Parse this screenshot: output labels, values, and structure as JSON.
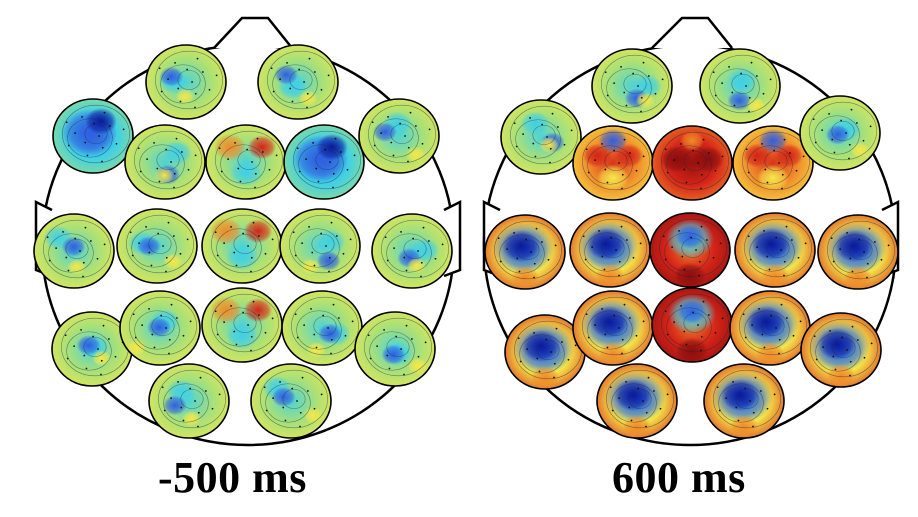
{
  "panels": [
    {
      "id": "left",
      "label": "-500 ms",
      "maps": [
        {
          "name": "r1-1",
          "pattern": "mixed"
        },
        {
          "name": "r1-2",
          "pattern": "mixed"
        },
        {
          "name": "r2-1",
          "pattern": "blue"
        },
        {
          "name": "r2-2",
          "pattern": "mixed"
        },
        {
          "name": "r2-3",
          "pattern": "mixed-warm"
        },
        {
          "name": "r2-4",
          "pattern": "blue"
        },
        {
          "name": "r2-5",
          "pattern": "mixed"
        },
        {
          "name": "r3-1",
          "pattern": "mixed"
        },
        {
          "name": "r3-2",
          "pattern": "mixed"
        },
        {
          "name": "r3-3",
          "pattern": "mixed-warm"
        },
        {
          "name": "r3-4",
          "pattern": "mixed"
        },
        {
          "name": "r3-5",
          "pattern": "mixed"
        },
        {
          "name": "r4-1",
          "pattern": "mixed"
        },
        {
          "name": "r4-2",
          "pattern": "mixed"
        },
        {
          "name": "r4-3",
          "pattern": "mixed-warm"
        },
        {
          "name": "r4-4",
          "pattern": "mixed"
        },
        {
          "name": "r4-5",
          "pattern": "mixed"
        },
        {
          "name": "r5-1",
          "pattern": "mixed"
        },
        {
          "name": "r5-2",
          "pattern": "mixed"
        }
      ]
    },
    {
      "id": "right",
      "label": "600 ms",
      "maps": [
        {
          "name": "r1-1",
          "pattern": "mixed"
        },
        {
          "name": "r1-2",
          "pattern": "mixed"
        },
        {
          "name": "r2-1",
          "pattern": "mixed"
        },
        {
          "name": "r2-2",
          "pattern": "warm"
        },
        {
          "name": "r2-3",
          "pattern": "hot"
        },
        {
          "name": "r2-4",
          "pattern": "warm"
        },
        {
          "name": "r2-5",
          "pattern": "mixed"
        },
        {
          "name": "r3-1",
          "pattern": "blue-center"
        },
        {
          "name": "r3-2",
          "pattern": "blue-center"
        },
        {
          "name": "r3-3",
          "pattern": "blue-top-warm"
        },
        {
          "name": "r3-4",
          "pattern": "blue-center"
        },
        {
          "name": "r3-5",
          "pattern": "blue-center"
        },
        {
          "name": "r4-1",
          "pattern": "blue-center"
        },
        {
          "name": "r4-2",
          "pattern": "blue-center"
        },
        {
          "name": "r4-3",
          "pattern": "blue-top-warm"
        },
        {
          "name": "r4-4",
          "pattern": "blue-center"
        },
        {
          "name": "r4-5",
          "pattern": "blue-center"
        },
        {
          "name": "r5-1",
          "pattern": "blue-center"
        },
        {
          "name": "r5-2",
          "pattern": "blue-center"
        }
      ]
    }
  ],
  "colormap": {
    "deep_blue": "#0a1a9c",
    "blue": "#2f5fe0",
    "cyan": "#3fd0e6",
    "green": "#a6e07a",
    "yellow": "#f5e84a",
    "orange": "#f08a2a",
    "red": "#d42418",
    "dark_red": "#8a0e0e"
  }
}
